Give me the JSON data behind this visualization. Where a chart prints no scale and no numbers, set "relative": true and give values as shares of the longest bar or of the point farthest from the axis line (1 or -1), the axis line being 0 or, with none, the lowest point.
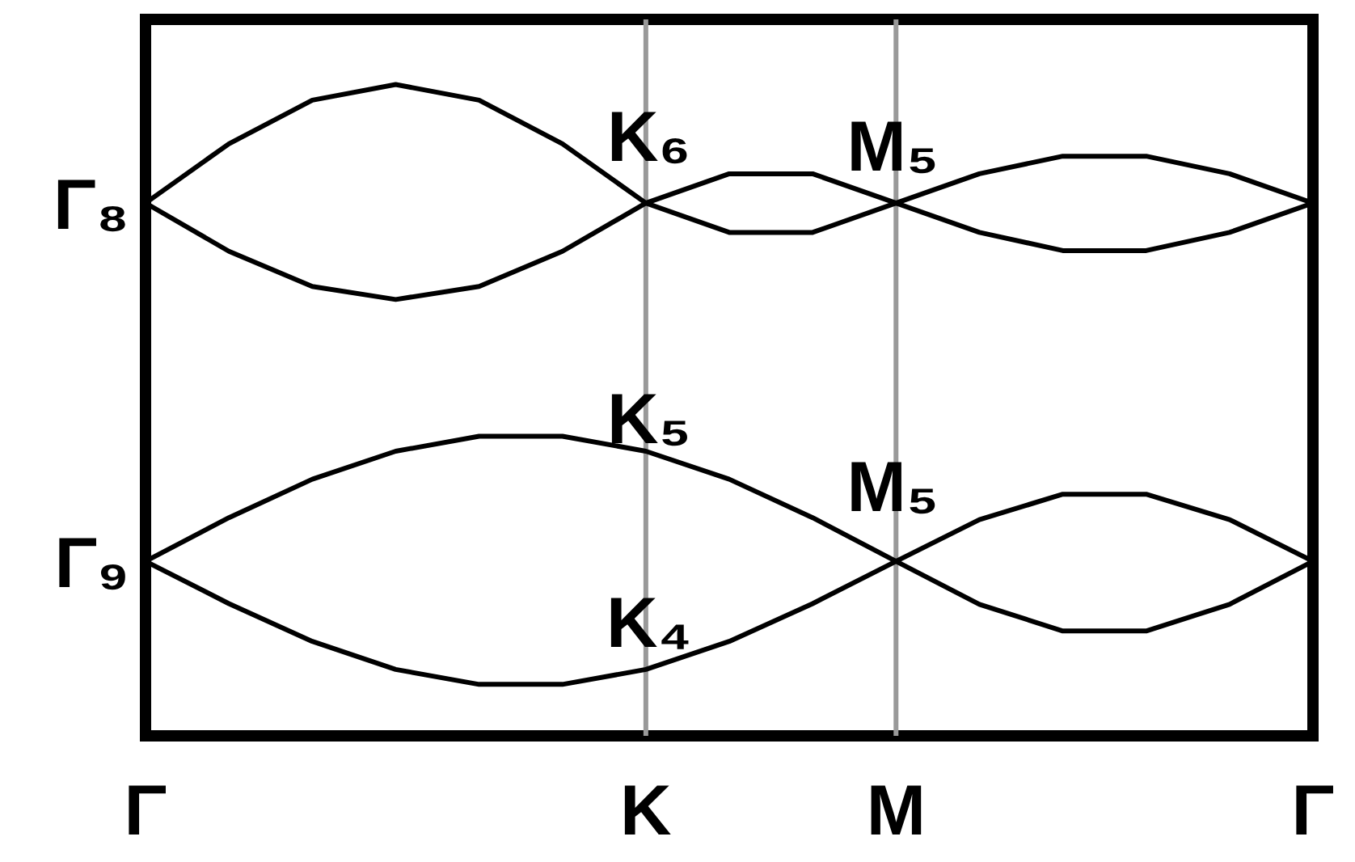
{
  "chart_data": {
    "type": "line",
    "relative": true,
    "categories": [
      "Γ",
      null,
      null,
      null,
      null,
      null,
      "K",
      null,
      null,
      "M",
      null,
      null,
      null,
      null,
      "Γ"
    ],
    "series": [
      {
        "color": "#000000",
        "values": [
          0.818,
          0.909,
          0.976,
          1,
          0.976,
          0.909,
          0.818,
          0.863,
          0.863,
          0.818,
          0.863,
          0.89,
          0.89,
          0.863,
          0.818
        ]
      },
      {
        "color": "#000000",
        "values": [
          0.818,
          0.744,
          0.69,
          0.67,
          0.69,
          0.744,
          0.818,
          0.773,
          0.773,
          0.818,
          0.773,
          0.745,
          0.745,
          0.773,
          0.818
        ]
      },
      {
        "color": "#000000",
        "values": [
          0.268,
          0.335,
          0.394,
          0.437,
          0.46,
          0.46,
          0.437,
          0.394,
          0.335,
          0.268,
          0.332,
          0.371,
          0.371,
          0.332,
          0.268
        ]
      },
      {
        "color": "#000000",
        "values": [
          0.268,
          0.203,
          0.145,
          0.102,
          0.079,
          0.079,
          0.102,
          0.145,
          0.203,
          0.268,
          0.202,
          0.161,
          0.161,
          0.202,
          0.268
        ]
      }
    ],
    "ref_lines": [
      {
        "axis": "x",
        "value": "K",
        "color": "#999999"
      },
      {
        "axis": "x",
        "value": "M",
        "color": "#999999"
      }
    ],
    "annotations": [
      {
        "text": "Γ₈",
        "x": "Γ",
        "y": 0.818
      },
      {
        "text": "K₆",
        "x": "K",
        "y": 0.818
      },
      {
        "text": "M₅",
        "x": "M",
        "y": 0.818
      },
      {
        "text": "K₅",
        "x": "K",
        "y": 0.437
      },
      {
        "text": "Γ₉",
        "x": "Γ",
        "y": 0.268
      },
      {
        "text": "M₅",
        "x": "M",
        "y": 0.268
      },
      {
        "text": "K₄",
        "x": "K",
        "y": 0.102
      }
    ],
    "legend": false,
    "grid": false,
    "marker": "none",
    "line_style": "solid"
  }
}
